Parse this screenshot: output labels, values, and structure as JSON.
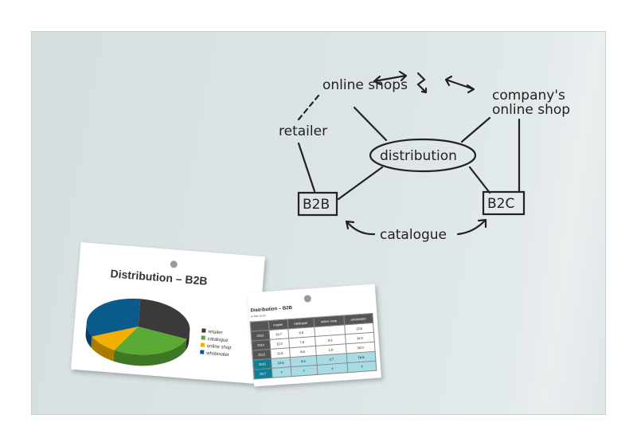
{
  "diagram": {
    "center": "distribution",
    "nodes": [
      "online shops",
      "company's online shop",
      "retailer",
      "B2B",
      "B2C",
      "catalogue"
    ],
    "symbol": "lightning-icon"
  },
  "chart_paper": {
    "chart_data": {
      "type": "pie",
      "title": "Distribution – B2B",
      "categories": [
        "retailer",
        "catalogue",
        "online shop",
        "wholesaler"
      ],
      "values": [
        30,
        27,
        10,
        33
      ],
      "colors": [
        "#3a3a3a",
        "#5aaa35",
        "#f4b000",
        "#0a5a8c"
      ],
      "legend": "right"
    }
  },
  "table_paper": {
    "title": "Distribution – B2B",
    "subtitle": "in Mio. Euro",
    "columns": [
      "",
      "retailer",
      "catalogue",
      "online shop",
      "wholesaler"
    ],
    "rows": [
      [
        "2013",
        "10.7",
        "6.5",
        "-",
        "13.5"
      ],
      [
        "2014",
        "11.0",
        "7.5",
        "0.5",
        "14.0"
      ],
      [
        "2015",
        "11.5",
        "8.5",
        "1.8",
        "16.0"
      ],
      [
        "2016",
        "12.5",
        "9.0",
        "2.7",
        "16.5"
      ],
      [
        "2017",
        "?",
        "?",
        "?",
        "?"
      ]
    ]
  }
}
